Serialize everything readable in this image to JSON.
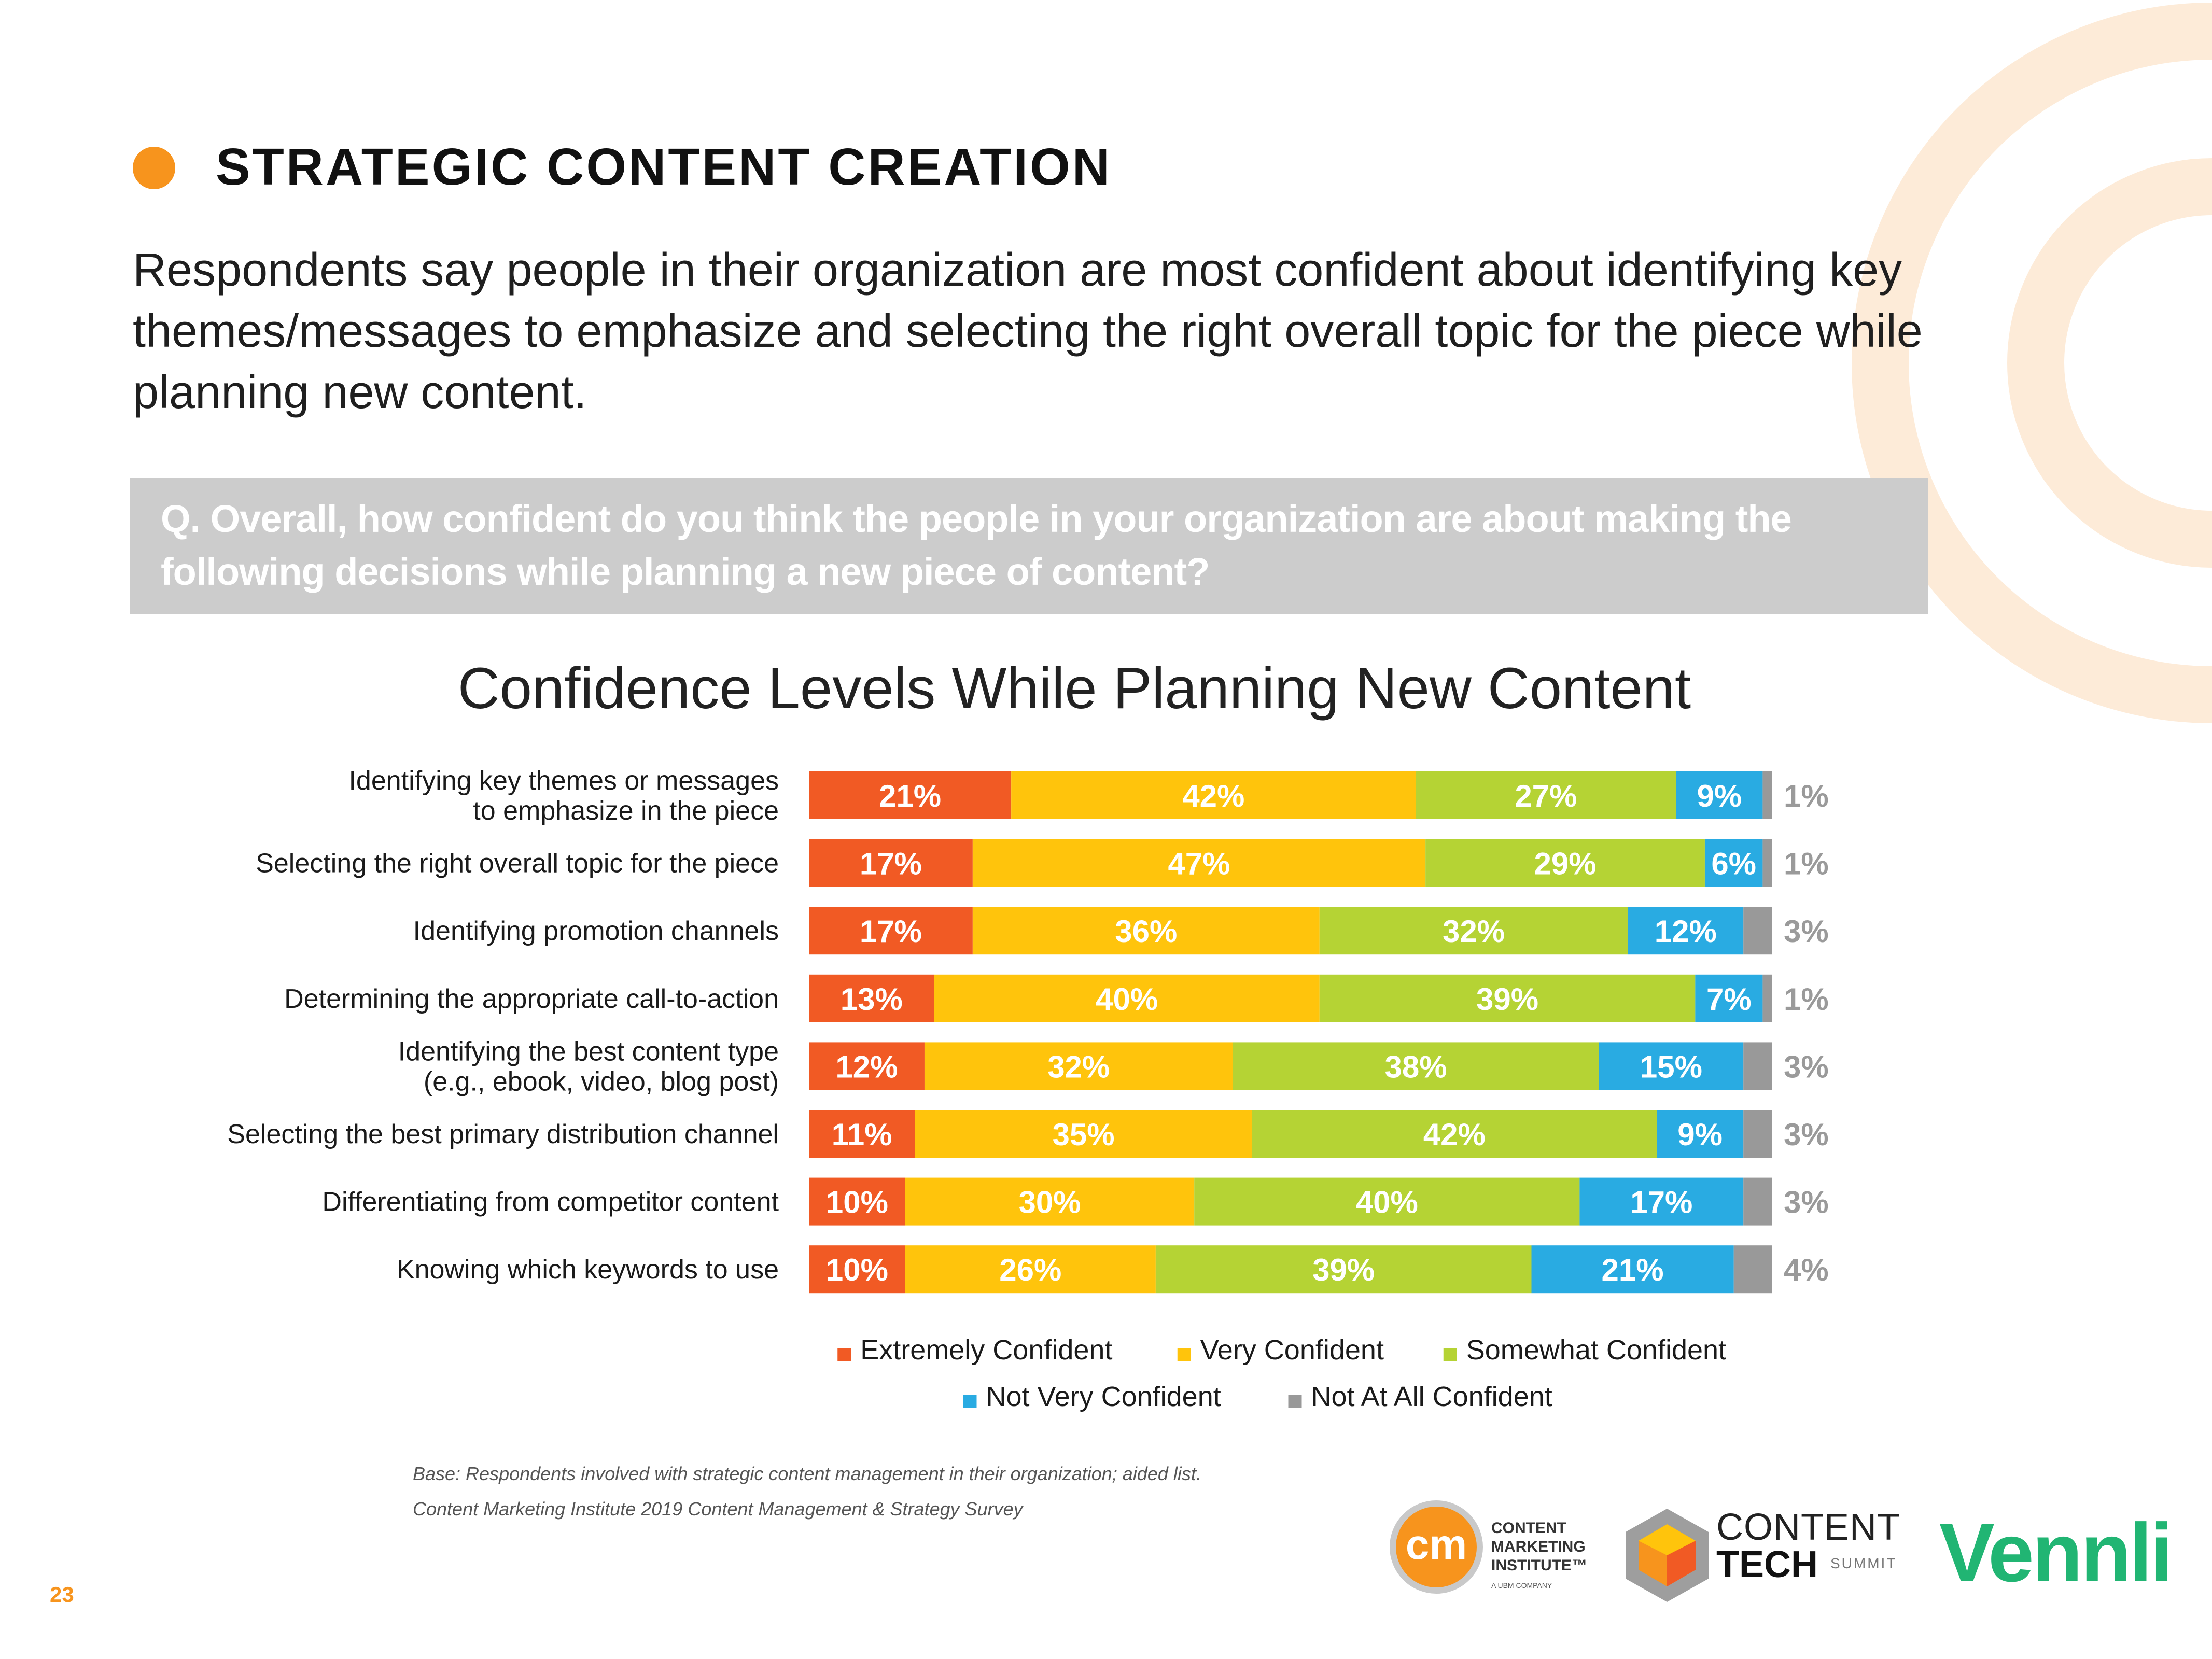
{
  "section_title": "STRATEGIC CONTENT CREATION",
  "subtitle": "Respondents say people in their organization are most confident about identifying key themes/messages to emphasize and selecting the right overall topic for the piece while planning new content.",
  "question": "Q. Overall, how confident do you think the people in your organization are about making the following decisions while planning a new piece of content?",
  "colors": {
    "accent": "#f7941d",
    "question_bg": "#cccccc",
    "arc_color": "#fde9d6"
  },
  "chart_data": {
    "type": "bar",
    "orientation": "horizontal",
    "stacked": true,
    "title": "Confidence Levels While Planning New Content",
    "categories": [
      [
        "Identifying key themes or messages",
        "to emphasize in the piece"
      ],
      [
        "Selecting the right overall topic for the piece"
      ],
      [
        "Identifying promotion channels"
      ],
      [
        "Determining the appropriate call-to-action"
      ],
      [
        "Identifying the best content type",
        "(e.g., ebook, video, blog post)"
      ],
      [
        "Selecting the best primary distribution channel"
      ],
      [
        "Differentiating from competitor content"
      ],
      [
        "Knowing which keywords to use"
      ]
    ],
    "series": [
      {
        "name": "Extremely Confident",
        "color": "#f15a24",
        "values": [
          21,
          17,
          17,
          13,
          12,
          11,
          10,
          10
        ]
      },
      {
        "name": "Very Confident",
        "color": "#ffc40c",
        "values": [
          42,
          47,
          36,
          40,
          32,
          35,
          30,
          26
        ]
      },
      {
        "name": "Somewhat Confident",
        "color": "#b5d334",
        "values": [
          27,
          29,
          32,
          39,
          38,
          42,
          40,
          39
        ]
      },
      {
        "name": "Not Very Confident",
        "color": "#29abe2",
        "values": [
          9,
          6,
          12,
          7,
          15,
          9,
          17,
          21
        ]
      },
      {
        "name": "Not At All Confident",
        "color": "#999999",
        "values": [
          1,
          1,
          3,
          1,
          3,
          3,
          3,
          4
        ]
      }
    ],
    "legend_rows": [
      [
        0,
        1,
        2
      ],
      [
        3,
        4
      ]
    ],
    "legend_position": "bottom",
    "xlim": [
      0,
      100
    ]
  },
  "footnotes": [
    "Base: Respondents involved with strategic content management in their organization; aided list.",
    "Content Marketing Institute 2019 Content Management & Strategy Survey"
  ],
  "page_number": "23",
  "logos": {
    "cmi_badge": "cm",
    "cmi_name": "CONTENT MARKETING INSTITUTE™",
    "cmi_sub": "A UBM COMPANY",
    "ct_top": "CONTENT",
    "ct_bottom": "TECH",
    "ct_summit": "SUMMIT",
    "vennli": "Vennli"
  }
}
